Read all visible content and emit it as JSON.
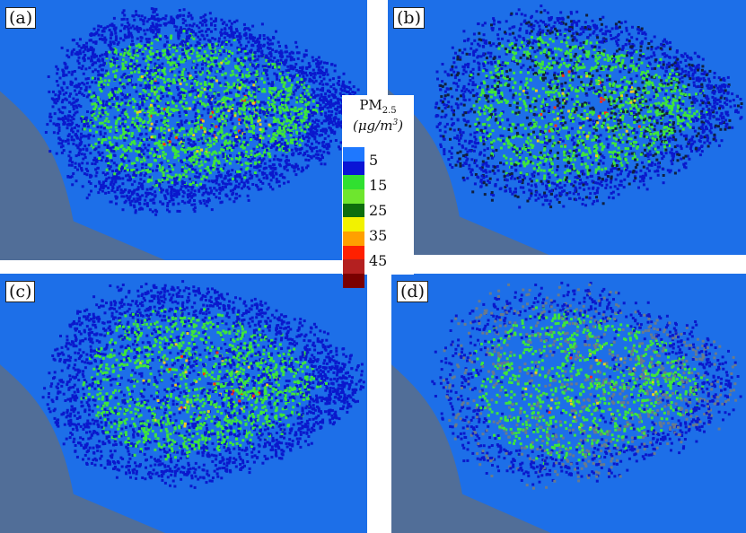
{
  "panels": [
    {
      "id": "a",
      "label": "(a)",
      "style": "smooth",
      "density": 1.0
    },
    {
      "id": "b",
      "label": "(b)",
      "style": "speckled",
      "density": 0.75
    },
    {
      "id": "c",
      "label": "(c)",
      "style": "smooth",
      "density": 0.85
    },
    {
      "id": "d",
      "label": "(d)",
      "style": "faded",
      "density": 0.6
    }
  ],
  "colorbar": {
    "title": "PM",
    "title_sub": "2.5",
    "unit_open": "(",
    "unit_main": "μg/m",
    "unit_sup": "3",
    "unit_close": ")",
    "ticks": [
      "5",
      "15",
      "25",
      "35",
      "45"
    ],
    "colors": [
      "#1e78ff",
      "#0a14d6",
      "#30e030",
      "#6ee62e",
      "#0d6e0d",
      "#f2f200",
      "#ffa000",
      "#ff2000",
      "#b42020",
      "#7a0000"
    ]
  },
  "map_colors": {
    "sea": "#1d6fe8",
    "coast_land": "#5a6e8a",
    "low": "#0a18cc",
    "mid": "#3ee63a",
    "high": "#e8d020",
    "peak": "#ff3010"
  }
}
